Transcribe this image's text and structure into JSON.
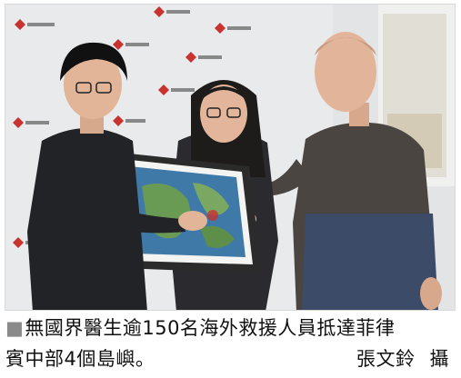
{
  "photo": {
    "background_color": "#e9eaec",
    "logo_color": "#c8322f"
  },
  "caption": {
    "marker": "■",
    "line1": "無國界醫生逾150名海外救援人員抵達菲律",
    "line2": "賓中部4個島嶼。",
    "credit_name": "張文鈴",
    "credit_role": "攝"
  }
}
